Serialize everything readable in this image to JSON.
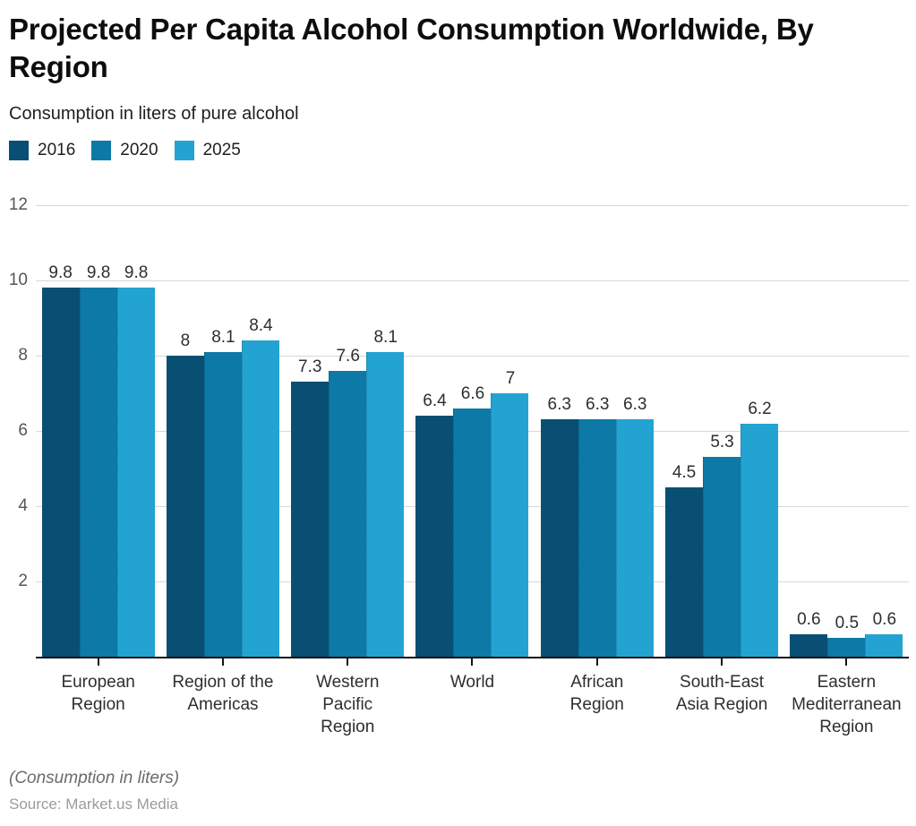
{
  "header": {
    "title_lines": [
      "Projected Per Capita Alcohol Consumption Worldwide, By",
      "Region"
    ],
    "subtitle": "Consumption in liters of pure alcohol"
  },
  "chart_data": {
    "type": "bar",
    "title": "Projected Per Capita Alcohol Consumption Worldwide, By Region",
    "subtitle": "Consumption in liters of pure alcohol",
    "categories": [
      "European Region",
      "Region of the Americas",
      "Western Pacific Region",
      "World",
      "African Region",
      "South-East Asia Region",
      "Eastern Mediterranean Region"
    ],
    "category_display": [
      "European\nRegion",
      "Region of the\nAmericas",
      "Western\nPacific\nRegion",
      "World",
      "African\nRegion",
      "South-East\nAsia Region",
      "Eastern\nMediterranean\nRegion"
    ],
    "series": [
      {
        "name": "2016",
        "color": "#094f73",
        "values": [
          9.8,
          8,
          7.3,
          6.4,
          6.3,
          4.5,
          0.6
        ],
        "labels": [
          "9.8",
          "8",
          "7.3",
          "6.4",
          "6.3",
          "4.5",
          "0.6"
        ]
      },
      {
        "name": "2020",
        "color": "#0d79a6",
        "values": [
          9.8,
          8.1,
          7.6,
          6.6,
          6.3,
          5.3,
          0.5
        ],
        "labels": [
          "9.8",
          "8.1",
          "7.6",
          "6.6",
          "6.3",
          "5.3",
          "0.5"
        ]
      },
      {
        "name": "2025",
        "color": "#23a3d2",
        "values": [
          9.8,
          8.4,
          8.1,
          7,
          6.3,
          6.2,
          0.6
        ],
        "labels": [
          "9.8",
          "8.4",
          "8.1",
          "7",
          "6.3",
          "6.2",
          "0.6"
        ]
      }
    ],
    "xlabel": "",
    "ylabel": "",
    "ylim": [
      0,
      12
    ],
    "yticks": [
      2,
      4,
      6,
      8,
      10,
      12
    ],
    "grid": "horizontal",
    "legend_position": "top-left",
    "value_labels": true,
    "gridline_color": "#d8d8d8",
    "axis_color": "#141414"
  },
  "footer": {
    "note": "(Consumption in liters)",
    "source": "Source: Market.us Media"
  }
}
